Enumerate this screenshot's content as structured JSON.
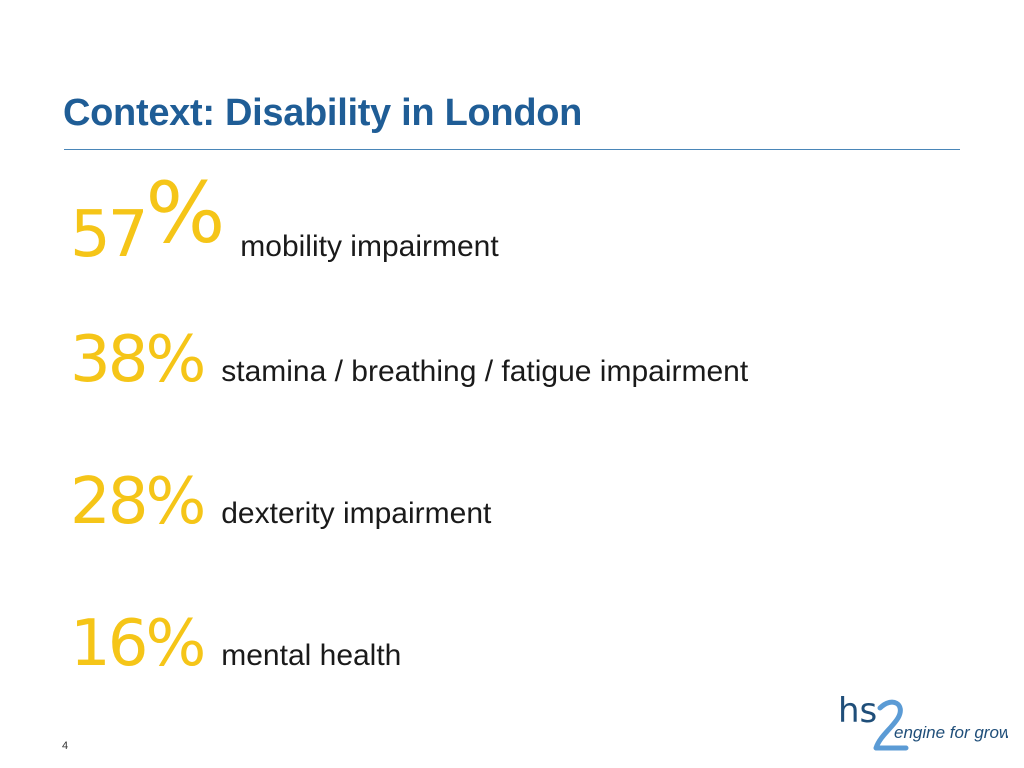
{
  "slide": {
    "title": "Context: Disability in London",
    "number": "4"
  },
  "stats": [
    {
      "value": "57",
      "symbol": "%",
      "label": "mobility impairment"
    },
    {
      "value": "38%",
      "label": "stamina / breathing / fatigue impairment"
    },
    {
      "value": "28%",
      "label": "dexterity impairment"
    },
    {
      "value": "16%",
      "label": "mental health"
    }
  ],
  "logo": {
    "primary_text": "hs",
    "secondary_text": "engine for growth",
    "colors": {
      "dark": "#1f4e79",
      "light": "#5b9bd5"
    }
  },
  "colors": {
    "title": "#1f5d96",
    "rule": "#4a86b8",
    "accent": "#f5c518",
    "body_text": "#1a1a1a"
  }
}
